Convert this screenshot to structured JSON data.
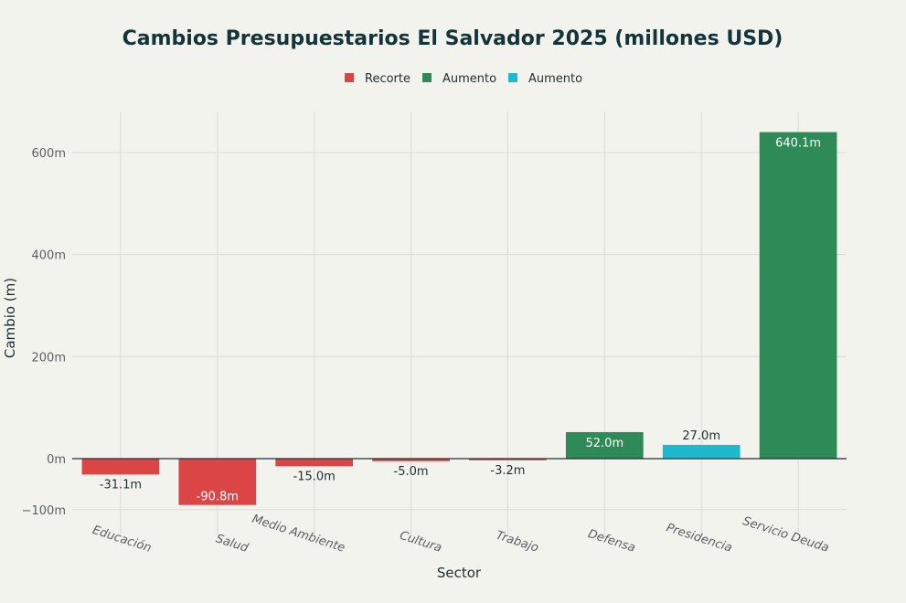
{
  "chart_data": {
    "type": "bar",
    "title": "Cambios Presupuestarios El Salvador 2025 (millones USD)",
    "xlabel": "Sector",
    "ylabel": "Cambio (m)",
    "categories": [
      "Educación",
      "Salud",
      "Medio Ambiente",
      "Cultura",
      "Trabajo",
      "Defensa",
      "Presidencia",
      "Servicio Deuda"
    ],
    "values": [
      -31.1,
      -90.8,
      -15.0,
      -5.0,
      -3.2,
      52.0,
      27.0,
      640.1
    ],
    "bar_labels": [
      "-31.1m",
      "-90.8m",
      "-15.0m",
      "-5.0m",
      "-3.2m",
      "52.0m",
      "27.0m",
      "640.1m"
    ],
    "groups": [
      "Recorte",
      "Recorte",
      "Recorte",
      "Recorte",
      "Recorte",
      "Aumento",
      "Aumento2",
      "Aumento"
    ],
    "legend": [
      {
        "key": "Recorte",
        "name": "Recorte",
        "color": "#db4545"
      },
      {
        "key": "Aumento",
        "name": "Aumento",
        "color": "#2e8b57"
      },
      {
        "key": "Aumento2",
        "name": "Aumento",
        "color": "#1fb8cd"
      }
    ],
    "ylim": [
      -100,
      680
    ],
    "yticks": [
      -100,
      0,
      200,
      400,
      600
    ],
    "ytick_labels": [
      "−100m",
      "0m",
      "200m",
      "400m",
      "600m"
    ],
    "grid": true,
    "legend_position": "top-center",
    "label_positions": [
      "outside",
      "inside",
      "outside",
      "outside",
      "outside",
      "inside",
      "outside",
      "inside"
    ]
  }
}
